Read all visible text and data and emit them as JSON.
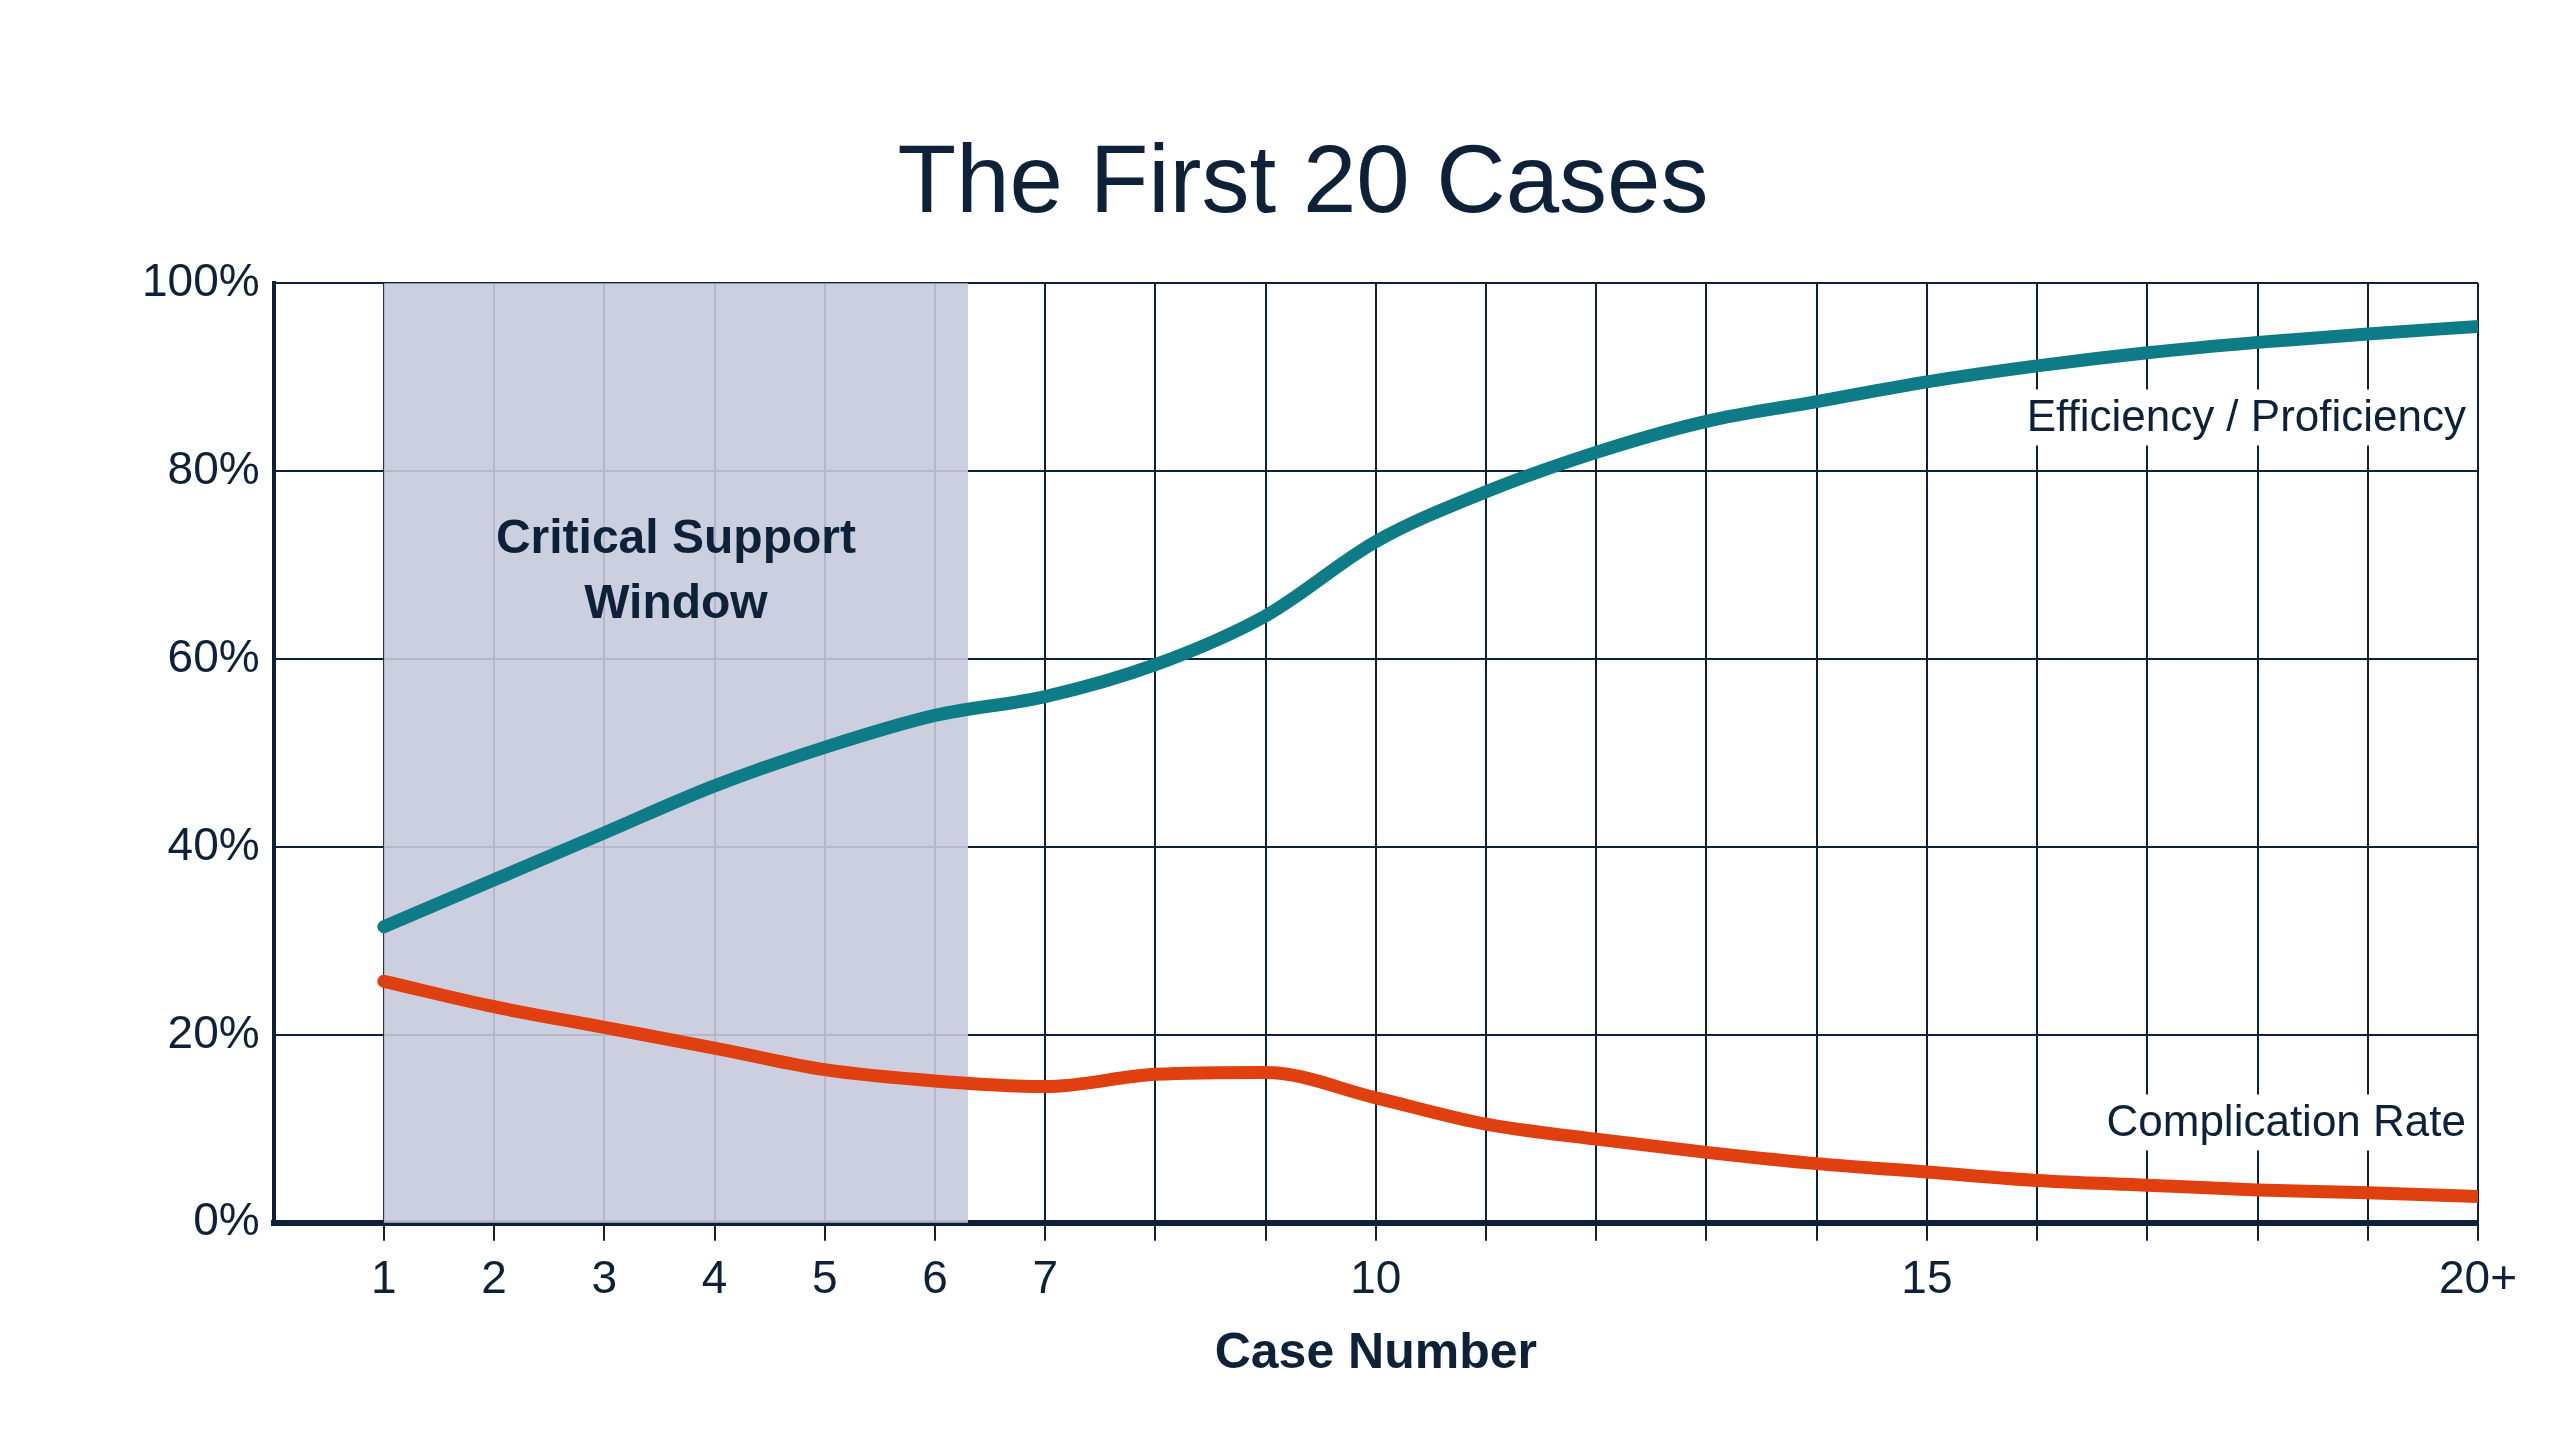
{
  "chart_data": {
    "type": "line",
    "title": "The First 20 Cases",
    "xlabel": "Case Number",
    "x": [
      1,
      2,
      3,
      4,
      5,
      6,
      7,
      8,
      9,
      10,
      11,
      12,
      13,
      14,
      15,
      16,
      17,
      18,
      19,
      20
    ],
    "series": [
      {
        "name": "Efficiency / Proficiency",
        "color": "#0e7c86",
        "values": [
          31.5,
          36.5,
          41.5,
          46.5,
          50.6,
          54,
          56,
          59.4,
          64.6,
          72.5,
          77.8,
          82,
          85.3,
          87.4,
          89.5,
          91.2,
          92.6,
          93.7,
          94.6,
          95.4
        ]
      },
      {
        "name": "Complication Rate",
        "color": "#e04010",
        "values": [
          25.7,
          23,
          20.8,
          18.6,
          16.3,
          15.1,
          14.5,
          15.8,
          16,
          13.3,
          10.5,
          8.9,
          7.5,
          6.3,
          5.4,
          4.5,
          4,
          3.5,
          3.2,
          2.8
        ]
      }
    ],
    "xlim": [
      0,
      20
    ],
    "xticks": [
      1,
      2,
      3,
      4,
      5,
      6,
      7,
      {
        "value": 8,
        "label": null
      },
      {
        "value": 9,
        "label": null
      },
      10,
      {
        "value": 11,
        "label": null
      },
      {
        "value": 12,
        "label": null
      },
      {
        "value": 13,
        "label": null
      },
      {
        "value": 14,
        "label": null
      },
      15,
      {
        "value": 16,
        "label": null
      },
      {
        "value": 17,
        "label": null
      },
      {
        "value": 18,
        "label": null
      },
      {
        "value": 19,
        "label": null
      },
      {
        "value": 20,
        "label": "20+"
      }
    ],
    "ylim": [
      0,
      100
    ],
    "yticks": [
      {
        "value": 0,
        "label": "0%"
      },
      {
        "value": 20,
        "label": "20%"
      },
      {
        "value": 40,
        "label": "40%"
      },
      {
        "value": 60,
        "label": "60%"
      },
      {
        "value": 80,
        "label": "80%"
      },
      {
        "value": 100,
        "label": "100%"
      }
    ],
    "bands": [
      {
        "axis": "x",
        "from": 1,
        "to": 6.3,
        "label": "Critical Support Window",
        "color": "#c5cadb"
      }
    ],
    "grid": true,
    "legend": false,
    "marker": "none",
    "line_style": "solid"
  }
}
